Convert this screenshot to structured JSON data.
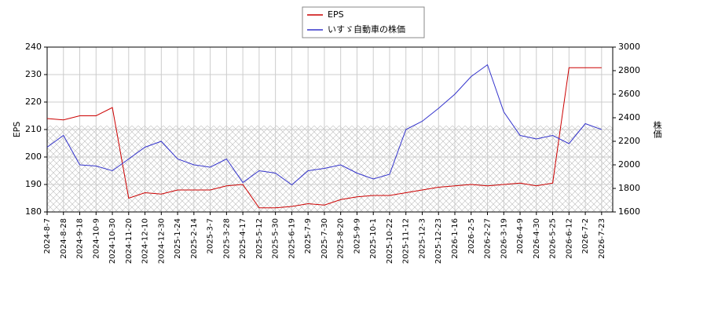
{
  "chart_data": {
    "type": "line",
    "ylabel": "EPS",
    "y2label": "株価",
    "categories": [
      "2024-8-7",
      "2024-8-28",
      "2024-9-18",
      "2024-10-9",
      "2024-10-30",
      "2024-11-20",
      "2024-12-10",
      "2024-12-30",
      "2025-1-24",
      "2025-2-14",
      "2025-3-7",
      "2025-3-28",
      "2025-4-17",
      "2025-5-12",
      "2025-5-30",
      "2025-6-19",
      "2025-7-9",
      "2025-7-30",
      "2025-8-20",
      "2025-9-9",
      "2025-10-1",
      "2025-10-22",
      "2025-11-12",
      "2025-12-3",
      "2025-12-23",
      "2026-1-16",
      "2026-2-5",
      "2026-2-27",
      "2026-3-19",
      "2026-4-9",
      "2026-4-30",
      "2026-5-25",
      "2026-6-12",
      "2026-7-2",
      "2026-7-23"
    ],
    "series": [
      {
        "name": "EPS",
        "color": "#cc0000",
        "values": [
          214,
          213.5,
          215,
          215,
          218,
          185,
          187,
          186.5,
          188,
          188,
          188,
          189.5,
          190,
          181.5,
          181.5,
          182,
          183,
          182.5,
          184.5,
          185.5,
          186,
          186,
          187,
          188,
          189,
          189.5,
          190,
          189.5,
          190,
          190.5,
          189.5,
          190.5,
          232.5,
          232.5,
          232.5
        ]
      },
      {
        "name": "いすゞ自動車の株価",
        "color": "#3333cc",
        "axis": "y2",
        "values": [
          2150,
          2250,
          2000,
          1990,
          1950,
          2050,
          2150,
          2200,
          2050,
          2000,
          1980,
          2050,
          1850,
          1950,
          1930,
          1830,
          1950,
          1970,
          2000,
          1930,
          1880,
          1920,
          2300,
          2370,
          2480,
          2600,
          2750,
          2850,
          2450,
          2250,
          2220,
          2250,
          2180,
          2350,
          2300
        ]
      }
    ],
    "ylim": [
      180,
      240
    ],
    "yticks": [
      180,
      190,
      200,
      210,
      220,
      230,
      240
    ],
    "y2lim": [
      1600,
      3000
    ],
    "y2ticks": [
      1600,
      1800,
      2000,
      2200,
      2400,
      2600,
      2800,
      3000
    ],
    "grid": true,
    "legend": "top"
  }
}
